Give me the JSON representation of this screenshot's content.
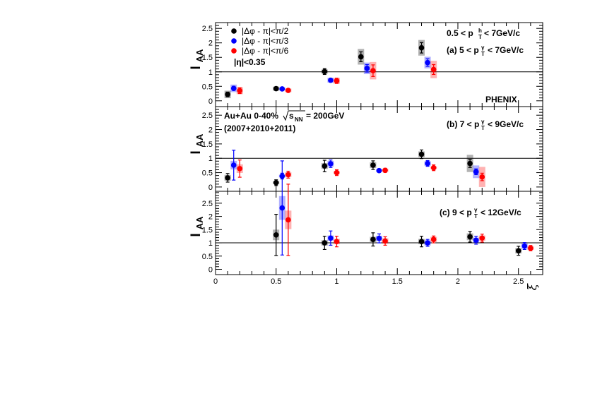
{
  "chart_data": {
    "type": "scatter",
    "xlabel": "ξ",
    "xlim": [
      0,
      2.7
    ],
    "xticks": [
      "0",
      "0.5",
      "1",
      "1.5",
      "2",
      "2.5"
    ],
    "ylabel": "I",
    "ylabel_sub": "AA",
    "colors": {
      "black": "#000000",
      "blue": "#0000ff",
      "red": "#ff0000"
    },
    "legend": {
      "placement": "top-left",
      "entries": [
        {
          "color": "black",
          "label": "|Δφ - π|<π/2"
        },
        {
          "color": "blue",
          "label": "|Δφ - π|<π/3"
        },
        {
          "color": "red",
          "label": "|Δφ - π|<π/6"
        }
      ],
      "eta": "|η|<0.35"
    },
    "experiment": "PHENIX",
    "system_text": "Au+Au 0-40%",
    "energy_text": "s",
    "energy_sub": "NN",
    "energy_value": "= 200GeV",
    "years": "(2007+2010+2011)",
    "pt_h_text": {
      "prefix": "0.5 < p",
      "sup": "h",
      "sub": "T",
      "suffix": "< 7GeV/c"
    },
    "reference_line": 1,
    "panels": [
      {
        "label_prefix": "(a) 5 < p",
        "label_sup": "γ",
        "label_sub": "T",
        "label_suffix": "< 7GeV/c",
        "ylim": [
          -0.2,
          2.7
        ],
        "yticks": [
          0,
          0.5,
          1,
          1.5,
          2,
          2.5
        ],
        "series": [
          {
            "color": "black",
            "points": [
              {
                "x": 0.1,
                "y": 0.22,
                "err": 0.08,
                "sys": 0.13
              },
              {
                "x": 0.5,
                "y": 0.42,
                "err": 0.06,
                "sys": 0.07
              },
              {
                "x": 0.9,
                "y": 1.01,
                "err": 0.1,
                "sys": 0.07
              },
              {
                "x": 1.2,
                "y": 1.52,
                "err": 0.17,
                "sys": 0.27
              },
              {
                "x": 1.7,
                "y": 1.83,
                "err": 0.18,
                "sys": 0.27
              }
            ]
          },
          {
            "color": "blue",
            "points": [
              {
                "x": 0.15,
                "y": 0.43,
                "err": 0.07,
                "sys": 0.13
              },
              {
                "x": 0.55,
                "y": 0.41,
                "err": 0.04,
                "sys": 0.05
              },
              {
                "x": 0.95,
                "y": 0.71,
                "err": 0.06,
                "sys": 0.08
              },
              {
                "x": 1.25,
                "y": 1.12,
                "err": 0.13,
                "sys": 0.2
              },
              {
                "x": 1.75,
                "y": 1.32,
                "err": 0.13,
                "sys": 0.2
              }
            ]
          },
          {
            "color": "red",
            "points": [
              {
                "x": 0.2,
                "y": 0.35,
                "err": 0.1,
                "sys": 0.12
              },
              {
                "x": 0.6,
                "y": 0.36,
                "err": 0.06,
                "sys": 0.06
              },
              {
                "x": 1.0,
                "y": 0.69,
                "err": 0.09,
                "sys": 0.1
              },
              {
                "x": 1.3,
                "y": 1.04,
                "err": 0.2,
                "sys": 0.3
              },
              {
                "x": 1.8,
                "y": 1.08,
                "err": 0.17,
                "sys": 0.3
              }
            ]
          }
        ]
      },
      {
        "label_prefix": "(b) 7 < p",
        "label_sup": "γ",
        "label_sub": "T",
        "label_suffix": "< 9GeV/c",
        "ylim": [
          -0.15,
          2.8
        ],
        "yticks": [
          0,
          0.5,
          1,
          1.5,
          2,
          2.5
        ],
        "series": [
          {
            "color": "black",
            "points": [
              {
                "x": 0.1,
                "y": 0.32,
                "err": 0.15,
                "sys": 0.1
              },
              {
                "x": 0.5,
                "y": 0.15,
                "err": 0.1,
                "sys": 0.05
              },
              {
                "x": 0.9,
                "y": 0.73,
                "err": 0.2,
                "sys": 0.1
              },
              {
                "x": 1.3,
                "y": 0.76,
                "err": 0.15,
                "sys": 0.1
              },
              {
                "x": 1.7,
                "y": 1.14,
                "err": 0.15,
                "sys": 0.1
              },
              {
                "x": 2.1,
                "y": 0.82,
                "err": 0.14,
                "sys": 0.3
              }
            ]
          },
          {
            "color": "blue",
            "points": [
              {
                "x": 0.15,
                "y": 0.76,
                "err": 0.52,
                "sys": 0.15
              },
              {
                "x": 0.55,
                "y": 0.38,
                "err": 0.1,
                "sys": 0.05
              },
              {
                "x": 0.95,
                "y": 0.81,
                "err": 0.13,
                "sys": 0.1
              },
              {
                "x": 1.35,
                "y": 0.57,
                "err": 0.06,
                "sys": 0.05
              },
              {
                "x": 1.75,
                "y": 0.82,
                "err": 0.1,
                "sys": 0.08
              },
              {
                "x": 2.15,
                "y": 0.53,
                "err": 0.1,
                "sys": 0.22
              }
            ]
          },
          {
            "color": "red",
            "points": [
              {
                "x": 0.2,
                "y": 0.64,
                "err": 0.3,
                "sys": 0.15
              },
              {
                "x": 0.6,
                "y": 0.43,
                "err": 0.12,
                "sys": 0.08
              },
              {
                "x": 1.0,
                "y": 0.5,
                "err": 0.1,
                "sys": 0.05
              },
              {
                "x": 1.4,
                "y": 0.58,
                "err": 0.07,
                "sys": 0.05
              },
              {
                "x": 1.8,
                "y": 0.67,
                "err": 0.1,
                "sys": 0.05
              },
              {
                "x": 2.2,
                "y": 0.35,
                "err": 0.13,
                "sys": 0.35
              }
            ]
          }
        ]
      },
      {
        "label_prefix": "(c) 9 < p",
        "label_sup": "γ",
        "label_sub": "T",
        "label_suffix": "< 12GeV/c",
        "ylim": [
          -0.2,
          2.95
        ],
        "yticks": [
          0,
          0.5,
          1,
          1.5,
          2,
          2.5
        ],
        "series": [
          {
            "color": "black",
            "points": [
              {
                "x": 0.5,
                "y": 1.3,
                "err": 0.78,
                "sys": 0.2
              },
              {
                "x": 0.9,
                "y": 1.0,
                "err": 0.25,
                "sys": 0.1
              },
              {
                "x": 1.3,
                "y": 1.13,
                "err": 0.25,
                "sys": 0.1
              },
              {
                "x": 1.7,
                "y": 1.05,
                "err": 0.2,
                "sys": 0.1
              },
              {
                "x": 2.1,
                "y": 1.23,
                "err": 0.2,
                "sys": 0.13
              },
              {
                "x": 2.5,
                "y": 0.7,
                "err": 0.17,
                "sys": 0.1
              }
            ]
          },
          {
            "color": "blue",
            "points": [
              {
                "x": 0.55,
                "y": 2.32,
                "err": 1.78,
                "sys": 0.45
              },
              {
                "x": 0.95,
                "y": 1.18,
                "err": 0.27,
                "sys": 0.1
              },
              {
                "x": 1.35,
                "y": 1.17,
                "err": 0.17,
                "sys": 0.1
              },
              {
                "x": 1.75,
                "y": 1.0,
                "err": 0.13,
                "sys": 0.1
              },
              {
                "x": 2.15,
                "y": 1.1,
                "err": 0.15,
                "sys": 0.1
              },
              {
                "x": 2.55,
                "y": 0.88,
                "err": 0.13,
                "sys": 0.1
              }
            ]
          },
          {
            "color": "red",
            "points": [
              {
                "x": 0.6,
                "y": 1.87,
                "err": 1.35,
                "sys": 0.35
              },
              {
                "x": 1.0,
                "y": 1.05,
                "err": 0.2,
                "sys": 0.1
              },
              {
                "x": 1.4,
                "y": 1.07,
                "err": 0.16,
                "sys": 0.1
              },
              {
                "x": 1.8,
                "y": 1.13,
                "err": 0.13,
                "sys": 0.1
              },
              {
                "x": 2.2,
                "y": 1.18,
                "err": 0.15,
                "sys": 0.1
              },
              {
                "x": 2.6,
                "y": 0.8,
                "err": 0.1,
                "sys": 0.07
              }
            ]
          }
        ]
      }
    ]
  }
}
